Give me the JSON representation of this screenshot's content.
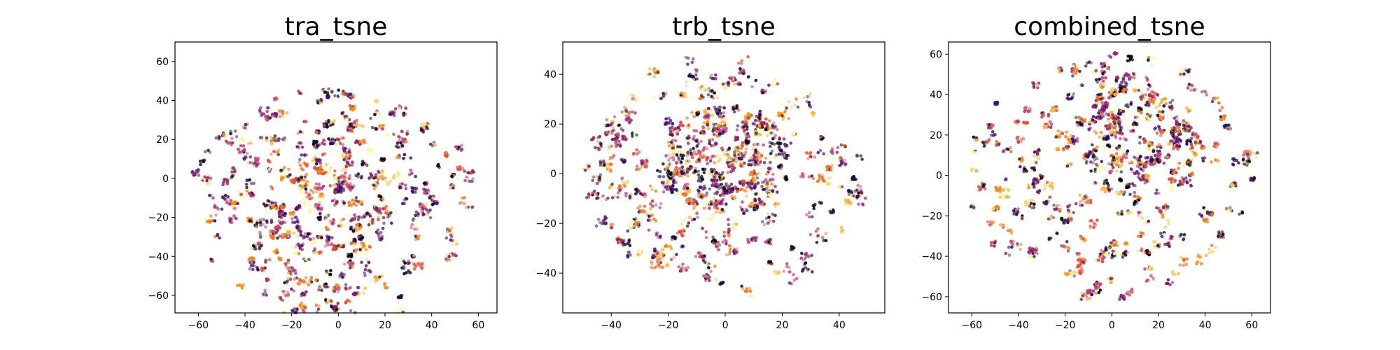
{
  "chart_data": [
    {
      "type": "scatter",
      "title": "tra_tsne",
      "xlim": [
        -70,
        68
      ],
      "ylim": [
        -69,
        70
      ],
      "xticks": [
        -60,
        -40,
        -20,
        0,
        20,
        40,
        60
      ],
      "yticks": [
        -60,
        -40,
        -20,
        0,
        20,
        40,
        60
      ],
      "xtick_labels": [
        "−60",
        "−40",
        "−20",
        "0",
        "20",
        "40",
        "60"
      ],
      "ytick_labels": [
        "−60",
        "−40",
        "−20",
        "0",
        "20",
        "40",
        "60"
      ],
      "radius": 62,
      "center": [
        -2,
        -14
      ],
      "density_center": [
        -5,
        -15
      ],
      "grid": false,
      "colormap": "inferno",
      "seed": 11
    },
    {
      "type": "scatter",
      "title": "trb_tsne",
      "xlim": [
        -57,
        56
      ],
      "ylim": [
        -56,
        53
      ],
      "xticks": [
        -40,
        -20,
        0,
        20,
        40
      ],
      "yticks": [
        -40,
        -20,
        0,
        20,
        40
      ],
      "xtick_labels": [
        "−40",
        "−20",
        "0",
        "20",
        "40"
      ],
      "ytick_labels": [
        "−40",
        "−20",
        "0",
        "20",
        "40"
      ],
      "radius": 49,
      "center": [
        0,
        0
      ],
      "density_center": [
        0,
        5
      ],
      "grid": false,
      "colormap": "inferno",
      "seed": 23
    },
    {
      "type": "scatter",
      "title": "combined_tsne",
      "xlim": [
        -70,
        68
      ],
      "ylim": [
        -68,
        66
      ],
      "xticks": [
        -60,
        -40,
        -20,
        0,
        20,
        40,
        60
      ],
      "yticks": [
        -60,
        -40,
        -20,
        0,
        20,
        40,
        60
      ],
      "xtick_labels": [
        "−60",
        "−40",
        "−20",
        "0",
        "20",
        "40",
        "60"
      ],
      "ytick_labels": [
        "−60",
        "−40",
        "−20",
        "0",
        "20",
        "40",
        "60"
      ],
      "radius": 62,
      "center": [
        0,
        0
      ],
      "density_center": [
        10,
        15
      ],
      "grid": false,
      "colormap": "inferno",
      "seed": 37
    }
  ]
}
